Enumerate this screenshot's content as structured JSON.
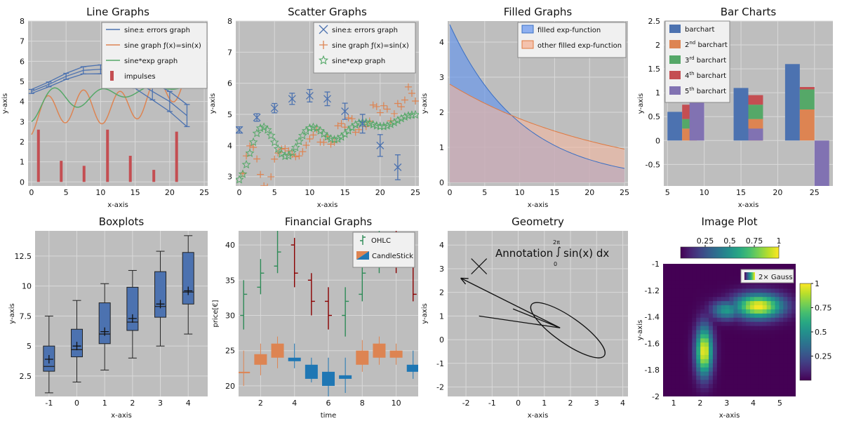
{
  "colors": {
    "plot_bg": "#bebebe",
    "grid": "#d9d9d9",
    "blue": "#4c72b0",
    "orange": "#dd8452",
    "green": "#55a868",
    "red": "#c44e52",
    "purple": "#8172b2",
    "tick_text": "#111111",
    "ohlc_up": "#2e8b57",
    "ohlc_down": "#8b0000",
    "candle_up": "#dd8452",
    "candle_down": "#1f77b4"
  },
  "chart_data": [
    {
      "type": "line",
      "title": "Line Graphs",
      "xlabel": "x-axis",
      "ylabel": "y-axis",
      "xlim": [
        -0.5,
        25.5
      ],
      "ylim": [
        -0.2,
        8
      ],
      "xticks": [
        0,
        5,
        10,
        15,
        20,
        25
      ],
      "yticks": [
        0,
        1,
        2,
        3,
        4,
        5,
        6,
        7,
        8
      ],
      "grid": true,
      "legend": "top-right",
      "legend_entries": [
        "sine± errors graph",
        "sine graph ƒ(x)=sin(x)",
        "sine*exp graph",
        "impulses"
      ],
      "impulses": {
        "x": [
          1,
          4.3,
          7.6,
          11,
          14.3,
          17.7,
          21
        ],
        "values": [
          2.6,
          1.05,
          0.8,
          2.6,
          1.3,
          0.6,
          2.5
        ]
      },
      "error_series": {
        "x": [
          0,
          2.5,
          5,
          7.5,
          10,
          12.5,
          15,
          17.5,
          20,
          22.5
        ],
        "values": [
          4.5,
          4.85,
          5.25,
          5.55,
          5.6,
          5.5,
          5.0,
          4.5,
          4.0,
          3.3
        ],
        "errors": [
          0.1,
          0.12,
          0.15,
          0.18,
          0.22,
          0.28,
          0.35,
          0.42,
          0.5,
          0.55
        ]
      }
    },
    {
      "type": "scatter",
      "title": "Scatter Graphs",
      "xlabel": "x-axis",
      "ylabel": "y-axis",
      "xlim": [
        -0.5,
        25.5
      ],
      "ylim": [
        2.7,
        8
      ],
      "xticks": [
        0,
        5,
        10,
        15,
        20,
        25
      ],
      "yticks": [
        3,
        4,
        5,
        6,
        7,
        8
      ],
      "grid": true,
      "legend": "top-right",
      "legend_entries": [
        "sine± errors graph",
        "sine graph ƒ(x)=sin(x)",
        "sine*exp graph"
      ],
      "error_series": {
        "x": [
          0,
          2.5,
          5,
          7.5,
          10,
          12.5,
          15,
          17.5,
          20,
          22.5
        ],
        "values": [
          4.5,
          4.9,
          5.2,
          5.5,
          5.6,
          5.5,
          5.1,
          4.7,
          4.0,
          3.3
        ],
        "errors": [
          0.1,
          0.12,
          0.15,
          0.18,
          0.2,
          0.22,
          0.26,
          0.3,
          0.35,
          0.4
        ]
      }
    },
    {
      "type": "area",
      "title": "Filled Graphs",
      "xlabel": "x-axis",
      "ylabel": "y-axis",
      "xlim": [
        -0.3,
        25.5
      ],
      "ylim": [
        -0.1,
        4.6
      ],
      "xticks": [
        0,
        5,
        10,
        15,
        20,
        25
      ],
      "yticks": [
        0,
        1,
        2,
        3,
        4
      ],
      "grid": true,
      "legend": "top-right",
      "legend_entries": [
        "filled exp-function",
        "other filled exp-function"
      ],
      "series": [
        {
          "name": "filled exp-function",
          "start": 4.5,
          "end": 0.4
        },
        {
          "name": "other filled exp-function",
          "start": 2.8,
          "end": 0.95
        }
      ]
    },
    {
      "type": "bar",
      "title": "Bar Charts",
      "xlabel": "x-axis",
      "ylabel": "y-axis",
      "xlim": [
        4.5,
        27.5
      ],
      "ylim": [
        -0.95,
        2.5
      ],
      "xticks": [
        5,
        10,
        15,
        20,
        25
      ],
      "ytick_labels": [
        "-0.5",
        "0",
        "0.5",
        "1",
        "1.5",
        "2",
        "2.5"
      ],
      "yticks": [
        -0.5,
        0,
        0.5,
        1,
        1.5,
        2,
        2.5
      ],
      "grid": true,
      "legend": "top-left",
      "legend_entries": [
        {
          "label": "barchart",
          "sup": ""
        },
        {
          "label": "2",
          "sup": "nd",
          "rest": " barchart"
        },
        {
          "label": "3",
          "sup": "rd",
          "rest": " barchart"
        },
        {
          "label": "4",
          "sup": "th",
          "rest": " barchart"
        },
        {
          "label": "5",
          "sup": "th",
          "rest": " barchart"
        }
      ],
      "groups": [
        {
          "x": 6,
          "segments": [
            0.6,
            0.25,
            0.2,
            0.3
          ]
        },
        {
          "x": 15,
          "segments": [
            1.1,
            0.45,
            0.3,
            0.2
          ]
        },
        {
          "x": 22,
          "segments": [
            1.6,
            0.65,
            0.42,
            0.05
          ]
        }
      ],
      "single_bars": [
        {
          "x": 9,
          "value": 0.85,
          "series": 4
        },
        {
          "x": 17,
          "value": 0.25,
          "series": 4
        },
        {
          "x": 26,
          "value": -0.95,
          "series": 4
        }
      ]
    },
    {
      "type": "box",
      "title": "Boxplots",
      "xlabel": "x-axis",
      "ylabel": "y-axis",
      "xlim": [
        -1.5,
        4.7
      ],
      "ylim": [
        0.8,
        14.6
      ],
      "xticks": [
        -1,
        0,
        1,
        2,
        3,
        4
      ],
      "ytick_labels": [
        "2.5",
        "5",
        "7.5",
        "10",
        "12.5"
      ],
      "yticks": [
        2.5,
        5,
        7.5,
        10,
        12.5
      ],
      "grid": true,
      "boxes": [
        {
          "x": -1,
          "min": 1.1,
          "q1": 2.9,
          "median": 3.3,
          "q3": 5.0,
          "max": 7.5,
          "mean": 3.9
        },
        {
          "x": 0,
          "min": 2.0,
          "q1": 4.1,
          "median": 4.7,
          "q3": 6.4,
          "max": 8.8,
          "mean": 5.0
        },
        {
          "x": 1,
          "min": 3.0,
          "q1": 5.2,
          "median": 6.0,
          "q3": 8.6,
          "max": 10.2,
          "mean": 6.2
        },
        {
          "x": 2,
          "min": 4.0,
          "q1": 6.3,
          "median": 7.0,
          "q3": 9.9,
          "max": 11.3,
          "mean": 7.3
        },
        {
          "x": 3,
          "min": 5.0,
          "q1": 7.4,
          "median": 8.3,
          "q3": 11.2,
          "max": 12.9,
          "mean": 8.5
        },
        {
          "x": 4,
          "min": 6.0,
          "q1": 8.5,
          "median": 9.5,
          "q3": 12.8,
          "max": 14.2,
          "mean": 9.6
        }
      ]
    },
    {
      "type": "ohlc",
      "title": "Financial Graphs",
      "xlabel": "time",
      "ylabel": "price[€]",
      "xlim": [
        0.7,
        11.3
      ],
      "ylim": [
        18.5,
        42
      ],
      "xticks": [
        2,
        4,
        6,
        8,
        10
      ],
      "yticks": [
        20,
        25,
        30,
        35,
        40
      ],
      "grid": true,
      "legend": "top-right",
      "legend_entries": [
        "OHLC",
        "CandleStick"
      ],
      "ohlc": [
        {
          "t": 1,
          "o": 30,
          "h": 35,
          "l": 28,
          "c": 33
        },
        {
          "t": 2,
          "o": 34,
          "h": 38,
          "l": 33,
          "c": 36
        },
        {
          "t": 3,
          "o": 37,
          "h": 42,
          "l": 36,
          "c": 39
        },
        {
          "t": 4,
          "o": 40,
          "h": 41,
          "l": 34,
          "c": 36
        },
        {
          "t": 5,
          "o": 35,
          "h": 36,
          "l": 30,
          "c": 32
        },
        {
          "t": 6,
          "o": 32,
          "h": 34,
          "l": 28,
          "c": 30
        },
        {
          "t": 7,
          "o": 30,
          "h": 34,
          "l": 27,
          "c": 32
        },
        {
          "t": 8,
          "o": 33,
          "h": 37,
          "l": 32,
          "c": 36
        },
        {
          "t": 9,
          "o": 37,
          "h": 42,
          "l": 36,
          "c": 40
        },
        {
          "t": 10,
          "o": 40,
          "h": 42,
          "l": 36,
          "c": 38
        },
        {
          "t": 11,
          "o": 38,
          "h": 39,
          "l": 32,
          "c": 33
        }
      ],
      "candles": [
        {
          "t": 1,
          "o": 22,
          "h": 25,
          "l": 20,
          "c": 22
        },
        {
          "t": 2,
          "o": 23,
          "h": 26,
          "l": 21.5,
          "c": 24.5
        },
        {
          "t": 3,
          "o": 24,
          "h": 27,
          "l": 22.5,
          "c": 26
        },
        {
          "t": 4,
          "o": 24,
          "h": 26,
          "l": 22.5,
          "c": 23.5
        },
        {
          "t": 5,
          "o": 23,
          "h": 24,
          "l": 20.5,
          "c": 21
        },
        {
          "t": 6,
          "o": 22,
          "h": 24,
          "l": 18.5,
          "c": 20
        },
        {
          "t": 7,
          "o": 21.5,
          "h": 24,
          "l": 19,
          "c": 21
        },
        {
          "t": 8,
          "o": 23,
          "h": 26.5,
          "l": 22,
          "c": 25
        },
        {
          "t": 9,
          "o": 24,
          "h": 27,
          "l": 23,
          "c": 26
        },
        {
          "t": 10,
          "o": 24,
          "h": 26,
          "l": 23,
          "c": 25
        },
        {
          "t": 11,
          "o": 23,
          "h": 25,
          "l": 21,
          "c": 22
        }
      ]
    },
    {
      "type": "geometry",
      "title": "Geometry",
      "xlabel": "x-axis",
      "ylabel": "y-axis",
      "xlim": [
        -2.7,
        4.2
      ],
      "ylim": [
        -2.4,
        4.6
      ],
      "xticks": [
        -2,
        -1,
        0,
        1,
        2,
        3,
        4
      ],
      "yticks": [
        -2,
        -1,
        0,
        1,
        2,
        3,
        4
      ],
      "grid": true,
      "annotation": {
        "prefix": "Annotation",
        "upper": "2π",
        "lower": "0",
        "body": "sin(x) dx"
      },
      "marker_point": [
        -1.5,
        3.1
      ],
      "arrow": {
        "from": [
          1.6,
          0.5
        ],
        "to": [
          -2.2,
          2.6
        ]
      },
      "ellipse": {
        "cx": 1.9,
        "cy": 0.4,
        "rx": 1.7,
        "ry": 0.55,
        "angle": -35
      },
      "polyline": [
        [
          -1.5,
          1.0
        ],
        [
          1.6,
          0.5
        ],
        [
          -0.2,
          1.3
        ]
      ]
    },
    {
      "type": "heatmap",
      "title": "Image Plot",
      "xlabel": "x-axis",
      "ylabel": "y-axis",
      "xlim": [
        0.6,
        5.6
      ],
      "ylim": [
        -2.0,
        -1.0
      ],
      "xticks": [
        1,
        2,
        3,
        4,
        5
      ],
      "yticks": [
        -1,
        -1.2,
        -1.4,
        -1.6,
        -1.8,
        -2
      ],
      "ytick_labels": [
        "-1",
        "-1.2",
        "-1.4",
        "-1.6",
        "-1.8",
        "-2"
      ],
      "legend": "top-right",
      "legend_entries": [
        "2× Gauss"
      ],
      "colorbar_h_ticks": [
        0.25,
        0.5,
        0.75,
        1
      ],
      "colorbar_h_labels": [
        "0.25",
        "0.5",
        "0.75",
        "1"
      ],
      "colorbar_v_ticks": [
        1,
        0.75,
        0.5,
        0.25
      ],
      "colorbar_v_labels": [
        "1",
        "0.75",
        "0.5",
        "0.25"
      ],
      "gaussians": [
        {
          "x": 4.2,
          "y": -1.32,
          "sx": 0.65,
          "sy": 0.065,
          "amp": 1.0
        },
        {
          "x": 2.15,
          "y": -1.66,
          "sx": 0.22,
          "sy": 0.13,
          "amp": 1.0
        }
      ]
    }
  ]
}
